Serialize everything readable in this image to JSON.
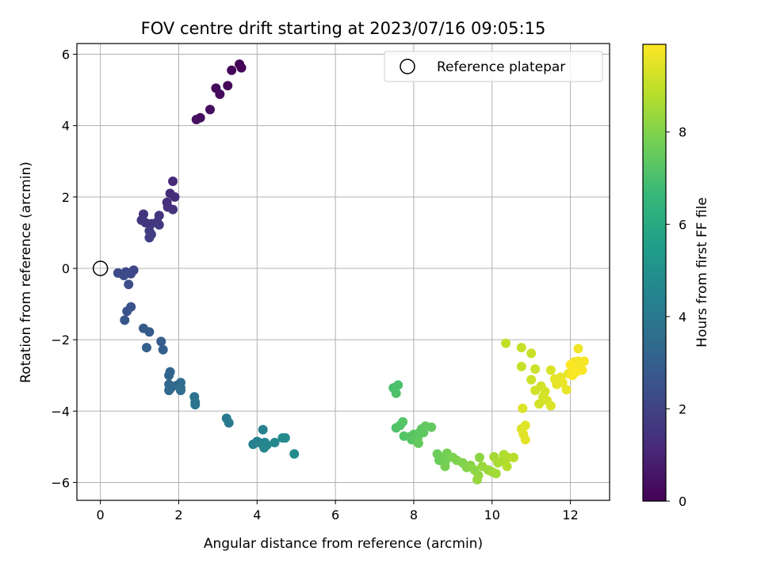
{
  "chart_data": {
    "type": "scatter",
    "title": "FOV centre drift starting at 2023/07/16 09:05:15",
    "xlabel": "Angular distance from reference (arcmin)",
    "ylabel": "Rotation from reference (arcmin)",
    "xlim": [
      -0.6,
      13.0
    ],
    "ylim": [
      -6.5,
      6.3
    ],
    "xticks": [
      0,
      2,
      4,
      6,
      8,
      10,
      12
    ],
    "yticks": [
      -6,
      -4,
      -2,
      0,
      2,
      4,
      6
    ],
    "grid": true,
    "legend": {
      "placement": "top-right",
      "entries": [
        {
          "label": "Reference platepar",
          "marker": "open-circle"
        }
      ]
    },
    "reference_point": {
      "x": 0,
      "y": 0
    },
    "colorbar": {
      "label": "Hours from first FF file",
      "min": 0,
      "max": 9.9,
      "ticks": [
        0,
        2,
        4,
        6,
        8
      ],
      "colormap": "viridis",
      "stops": [
        "#440154",
        "#482878",
        "#3e4989",
        "#31688e",
        "#26828e",
        "#1f9e89",
        "#35b779",
        "#6ece58",
        "#b5de2b",
        "#fde725"
      ]
    },
    "points": [
      {
        "x": 3.55,
        "y": 5.72,
        "h": 0.05
      },
      {
        "x": 3.6,
        "y": 5.62,
        "h": 0.1
      },
      {
        "x": 3.35,
        "y": 5.55,
        "h": 0.15
      },
      {
        "x": 3.25,
        "y": 5.12,
        "h": 0.2
      },
      {
        "x": 2.95,
        "y": 5.05,
        "h": 0.25
      },
      {
        "x": 3.05,
        "y": 4.88,
        "h": 0.3
      },
      {
        "x": 2.8,
        "y": 4.45,
        "h": 0.35
      },
      {
        "x": 2.55,
        "y": 4.22,
        "h": 0.4
      },
      {
        "x": 2.45,
        "y": 4.17,
        "h": 0.45
      },
      {
        "x": 1.85,
        "y": 2.44,
        "h": 1.2
      },
      {
        "x": 1.9,
        "y": 2.0,
        "h": 1.25
      },
      {
        "x": 1.78,
        "y": 2.1,
        "h": 1.3
      },
      {
        "x": 1.7,
        "y": 1.85,
        "h": 1.35
      },
      {
        "x": 1.72,
        "y": 1.72,
        "h": 1.4
      },
      {
        "x": 1.85,
        "y": 1.65,
        "h": 1.45
      },
      {
        "x": 1.5,
        "y": 1.48,
        "h": 1.5
      },
      {
        "x": 1.1,
        "y": 1.52,
        "h": 1.5
      },
      {
        "x": 1.05,
        "y": 1.35,
        "h": 1.55
      },
      {
        "x": 1.15,
        "y": 1.28,
        "h": 1.6
      },
      {
        "x": 1.3,
        "y": 1.25,
        "h": 1.6
      },
      {
        "x": 1.45,
        "y": 1.3,
        "h": 1.65
      },
      {
        "x": 1.5,
        "y": 1.22,
        "h": 1.7
      },
      {
        "x": 1.25,
        "y": 1.05,
        "h": 1.75
      },
      {
        "x": 1.3,
        "y": 0.95,
        "h": 1.8
      },
      {
        "x": 1.25,
        "y": 0.86,
        "h": 1.85
      },
      {
        "x": 0.85,
        "y": -0.05,
        "h": 2.1
      },
      {
        "x": 0.78,
        "y": -0.15,
        "h": 2.15
      },
      {
        "x": 0.65,
        "y": -0.1,
        "h": 2.2
      },
      {
        "x": 0.45,
        "y": -0.13,
        "h": 2.25
      },
      {
        "x": 0.6,
        "y": -0.2,
        "h": 2.3
      },
      {
        "x": 0.72,
        "y": -0.45,
        "h": 2.35
      },
      {
        "x": 0.78,
        "y": -1.08,
        "h": 2.55
      },
      {
        "x": 0.68,
        "y": -1.2,
        "h": 2.6
      },
      {
        "x": 0.62,
        "y": -1.45,
        "h": 2.65
      },
      {
        "x": 1.1,
        "y": -1.68,
        "h": 2.8
      },
      {
        "x": 1.25,
        "y": -1.78,
        "h": 2.85
      },
      {
        "x": 1.55,
        "y": -2.05,
        "h": 2.9
      },
      {
        "x": 1.6,
        "y": -2.28,
        "h": 2.95
      },
      {
        "x": 1.18,
        "y": -2.22,
        "h": 3.0
      },
      {
        "x": 1.78,
        "y": -2.9,
        "h": 3.15
      },
      {
        "x": 1.75,
        "y": -3.0,
        "h": 3.2
      },
      {
        "x": 1.75,
        "y": -3.25,
        "h": 3.25
      },
      {
        "x": 1.8,
        "y": -3.35,
        "h": 3.3
      },
      {
        "x": 1.75,
        "y": -3.42,
        "h": 3.35
      },
      {
        "x": 1.95,
        "y": -3.28,
        "h": 3.4
      },
      {
        "x": 2.05,
        "y": -3.2,
        "h": 3.45
      },
      {
        "x": 2.05,
        "y": -3.35,
        "h": 3.5
      },
      {
        "x": 2.05,
        "y": -3.42,
        "h": 3.55
      },
      {
        "x": 2.4,
        "y": -3.6,
        "h": 3.7
      },
      {
        "x": 2.42,
        "y": -3.75,
        "h": 3.75
      },
      {
        "x": 2.42,
        "y": -3.82,
        "h": 3.8
      },
      {
        "x": 3.22,
        "y": -4.2,
        "h": 4.0
      },
      {
        "x": 3.28,
        "y": -4.33,
        "h": 4.05
      },
      {
        "x": 4.15,
        "y": -4.52,
        "h": 4.3
      },
      {
        "x": 3.9,
        "y": -4.93,
        "h": 4.35
      },
      {
        "x": 4.0,
        "y": -4.85,
        "h": 4.4
      },
      {
        "x": 4.1,
        "y": -4.9,
        "h": 4.45
      },
      {
        "x": 4.2,
        "y": -4.88,
        "h": 4.5
      },
      {
        "x": 4.25,
        "y": -4.95,
        "h": 4.55
      },
      {
        "x": 4.18,
        "y": -5.03,
        "h": 4.6
      },
      {
        "x": 4.45,
        "y": -4.88,
        "h": 4.65
      },
      {
        "x": 4.65,
        "y": -4.75,
        "h": 4.7
      },
      {
        "x": 4.72,
        "y": -4.75,
        "h": 4.75
      },
      {
        "x": 4.95,
        "y": -5.2,
        "h": 4.8
      },
      {
        "x": 7.48,
        "y": -3.35,
        "h": 7.0
      },
      {
        "x": 7.6,
        "y": -3.27,
        "h": 7.05
      },
      {
        "x": 7.55,
        "y": -3.5,
        "h": 7.1
      },
      {
        "x": 7.55,
        "y": -4.47,
        "h": 7.1
      },
      {
        "x": 7.65,
        "y": -4.4,
        "h": 7.15
      },
      {
        "x": 7.72,
        "y": -4.3,
        "h": 7.2
      },
      {
        "x": 7.75,
        "y": -4.7,
        "h": 7.2
      },
      {
        "x": 7.9,
        "y": -4.72,
        "h": 7.25
      },
      {
        "x": 7.95,
        "y": -4.8,
        "h": 7.25
      },
      {
        "x": 8.0,
        "y": -4.65,
        "h": 7.3
      },
      {
        "x": 8.05,
        "y": -4.82,
        "h": 7.3
      },
      {
        "x": 8.1,
        "y": -4.75,
        "h": 7.35
      },
      {
        "x": 8.15,
        "y": -4.6,
        "h": 7.35
      },
      {
        "x": 8.2,
        "y": -4.5,
        "h": 7.4
      },
      {
        "x": 8.25,
        "y": -4.6,
        "h": 7.4
      },
      {
        "x": 8.3,
        "y": -4.42,
        "h": 7.45
      },
      {
        "x": 8.45,
        "y": -4.45,
        "h": 7.45
      },
      {
        "x": 8.12,
        "y": -4.9,
        "h": 7.5
      },
      {
        "x": 8.6,
        "y": -5.2,
        "h": 7.6
      },
      {
        "x": 8.65,
        "y": -5.38,
        "h": 7.65
      },
      {
        "x": 8.75,
        "y": -5.3,
        "h": 7.7
      },
      {
        "x": 8.8,
        "y": -5.42,
        "h": 7.75
      },
      {
        "x": 8.85,
        "y": -5.18,
        "h": 7.8
      },
      {
        "x": 8.8,
        "y": -5.55,
        "h": 7.85
      },
      {
        "x": 9.0,
        "y": -5.3,
        "h": 7.9
      },
      {
        "x": 9.1,
        "y": -5.38,
        "h": 7.95
      },
      {
        "x": 9.25,
        "y": -5.45,
        "h": 8.0
      },
      {
        "x": 9.35,
        "y": -5.58,
        "h": 8.05
      },
      {
        "x": 9.45,
        "y": -5.52,
        "h": 8.1
      },
      {
        "x": 9.55,
        "y": -5.65,
        "h": 8.15
      },
      {
        "x": 9.68,
        "y": -5.3,
        "h": 8.2
      },
      {
        "x": 9.65,
        "y": -5.8,
        "h": 8.25
      },
      {
        "x": 9.62,
        "y": -5.92,
        "h": 8.3
      },
      {
        "x": 9.75,
        "y": -5.55,
        "h": 8.35
      },
      {
        "x": 9.9,
        "y": -5.65,
        "h": 8.4
      },
      {
        "x": 10.0,
        "y": -5.7,
        "h": 8.45
      },
      {
        "x": 10.1,
        "y": -5.75,
        "h": 8.5
      },
      {
        "x": 10.05,
        "y": -5.28,
        "h": 8.55
      },
      {
        "x": 10.15,
        "y": -5.45,
        "h": 8.6
      },
      {
        "x": 10.25,
        "y": -5.4,
        "h": 8.65
      },
      {
        "x": 10.3,
        "y": -5.22,
        "h": 8.7
      },
      {
        "x": 10.4,
        "y": -5.3,
        "h": 8.75
      },
      {
        "x": 10.38,
        "y": -5.55,
        "h": 8.8
      },
      {
        "x": 10.55,
        "y": -5.3,
        "h": 8.85
      },
      {
        "x": 10.35,
        "y": -2.1,
        "h": 9.0
      },
      {
        "x": 10.75,
        "y": -2.22,
        "h": 9.05
      },
      {
        "x": 10.75,
        "y": -2.75,
        "h": 9.1
      },
      {
        "x": 11.0,
        "y": -2.38,
        "h": 9.1
      },
      {
        "x": 11.0,
        "y": -3.12,
        "h": 9.15
      },
      {
        "x": 11.1,
        "y": -2.82,
        "h": 9.15
      },
      {
        "x": 11.1,
        "y": -3.42,
        "h": 9.2
      },
      {
        "x": 11.25,
        "y": -3.3,
        "h": 9.2
      },
      {
        "x": 11.2,
        "y": -3.8,
        "h": 9.25
      },
      {
        "x": 11.3,
        "y": -3.6,
        "h": 9.25
      },
      {
        "x": 11.35,
        "y": -3.45,
        "h": 9.3
      },
      {
        "x": 11.4,
        "y": -3.7,
        "h": 9.3
      },
      {
        "x": 11.5,
        "y": -2.85,
        "h": 9.35
      },
      {
        "x": 11.5,
        "y": -3.85,
        "h": 9.35
      },
      {
        "x": 10.78,
        "y": -3.92,
        "h": 9.4
      },
      {
        "x": 10.75,
        "y": -4.5,
        "h": 9.4
      },
      {
        "x": 10.85,
        "y": -4.4,
        "h": 9.45
      },
      {
        "x": 10.8,
        "y": -4.65,
        "h": 9.45
      },
      {
        "x": 10.85,
        "y": -4.8,
        "h": 9.5
      },
      {
        "x": 11.6,
        "y": -3.1,
        "h": 9.5
      },
      {
        "x": 11.65,
        "y": -3.25,
        "h": 9.55
      },
      {
        "x": 11.75,
        "y": -3.05,
        "h": 9.55
      },
      {
        "x": 11.8,
        "y": -3.2,
        "h": 9.6
      },
      {
        "x": 11.9,
        "y": -3.4,
        "h": 9.6
      },
      {
        "x": 11.95,
        "y": -2.95,
        "h": 9.65
      },
      {
        "x": 12.05,
        "y": -2.85,
        "h": 9.65
      },
      {
        "x": 12.1,
        "y": -2.62,
        "h": 9.7
      },
      {
        "x": 12.2,
        "y": -2.25,
        "h": 9.7
      },
      {
        "x": 12.2,
        "y": -2.6,
        "h": 9.75
      },
      {
        "x": 12.25,
        "y": -2.7,
        "h": 9.75
      },
      {
        "x": 12.3,
        "y": -2.85,
        "h": 9.8
      },
      {
        "x": 12.35,
        "y": -2.6,
        "h": 9.8
      },
      {
        "x": 12.15,
        "y": -2.9,
        "h": 9.85
      },
      {
        "x": 12.05,
        "y": -3.0,
        "h": 9.85
      },
      {
        "x": 12.0,
        "y": -2.7,
        "h": 9.9
      }
    ]
  }
}
